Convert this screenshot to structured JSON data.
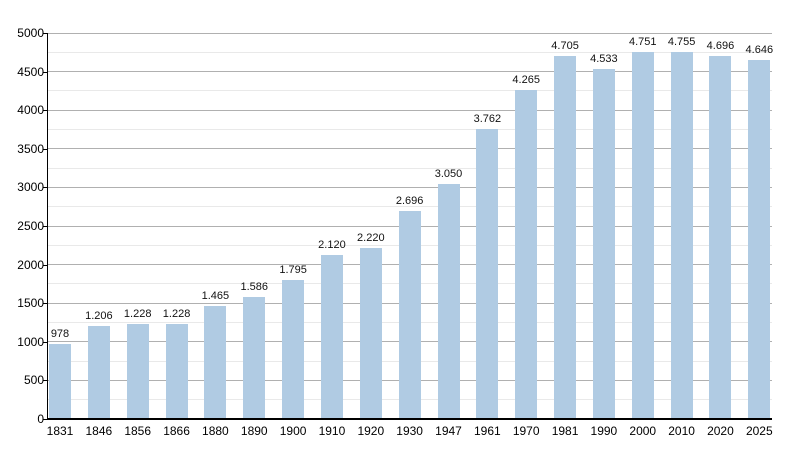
{
  "chart_data": {
    "type": "bar",
    "title": "",
    "xlabel": "",
    "ylabel": "",
    "categories": [
      "1831",
      "1846",
      "1856",
      "1866",
      "1880",
      "1890",
      "1900",
      "1910",
      "1920",
      "1930",
      "1947",
      "1961",
      "1970",
      "1981",
      "1990",
      "2000",
      "2010",
      "2020",
      "2025"
    ],
    "values": [
      978,
      1206,
      1228,
      1228,
      1465,
      1586,
      1795,
      2120,
      2220,
      2696,
      3050,
      3762,
      4265,
      4705,
      4533,
      4751,
      4755,
      4696,
      4646
    ],
    "value_labels": [
      "978",
      "1.206",
      "1.228",
      "1.228",
      "1.465",
      "1.586",
      "1.795",
      "2.120",
      "2.220",
      "2.696",
      "3.050",
      "3.762",
      "4.265",
      "4.705",
      "4.533",
      "4.751",
      "4.755",
      "4.696",
      "4.646"
    ],
    "ylim": [
      0,
      5000
    ],
    "y_major_step": 500,
    "y_minor_step": 250,
    "y_tick_labels": [
      "0",
      "500",
      "1000",
      "1500",
      "2000",
      "2500",
      "3000",
      "3500",
      "4000",
      "4500",
      "5000"
    ],
    "grid": "on",
    "legend_position": "none",
    "colors": {
      "bar_fill": "#b0cbe3",
      "grid_major": "#b0b0b0",
      "grid_minor": "#e9e9e9",
      "axis": "#000000",
      "text": "#000000",
      "background": "#ffffff"
    }
  }
}
